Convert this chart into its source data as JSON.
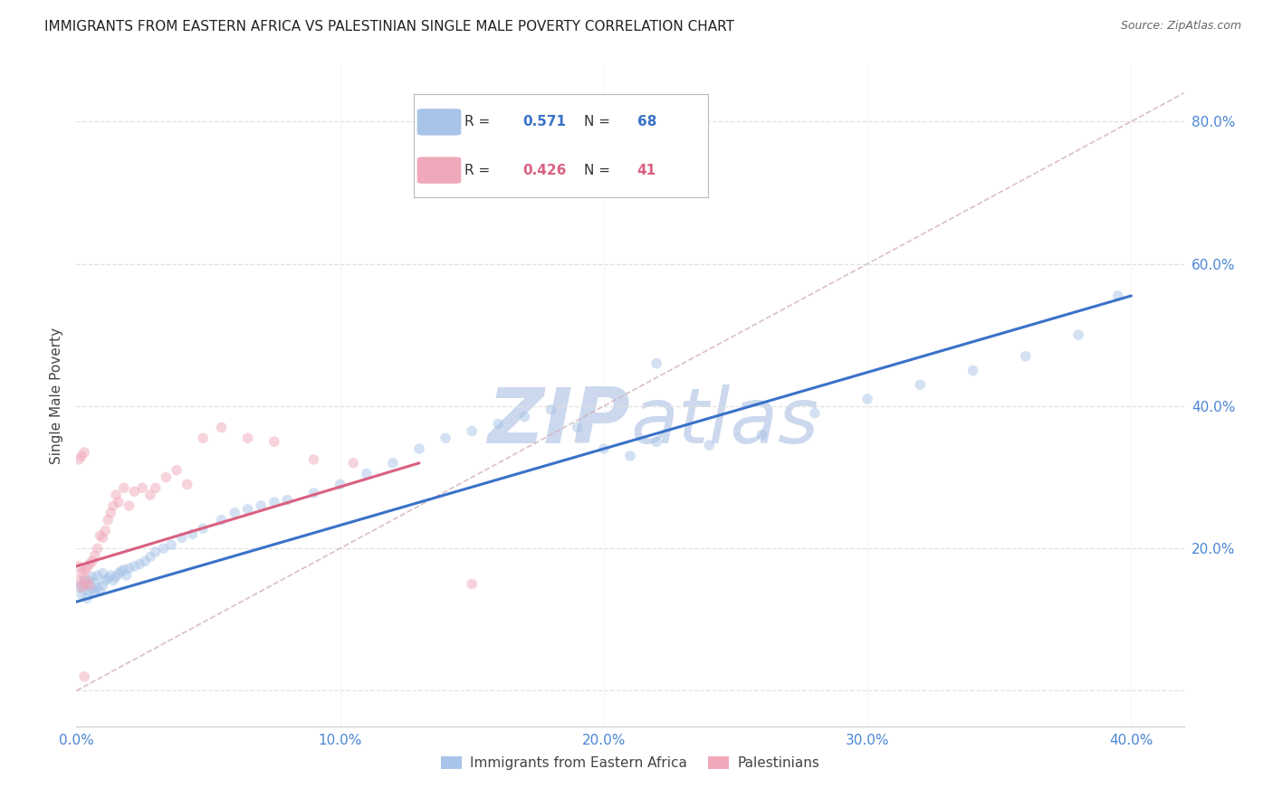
{
  "title": "IMMIGRANTS FROM EASTERN AFRICA VS PALESTINIAN SINGLE MALE POVERTY CORRELATION CHART",
  "source": "Source: ZipAtlas.com",
  "ylabel": "Single Male Poverty",
  "xlim": [
    0.0,
    0.42
  ],
  "ylim": [
    -0.05,
    0.88
  ],
  "ytick_values": [
    0.0,
    0.2,
    0.4,
    0.6,
    0.8
  ],
  "xtick_values": [
    0.0,
    0.1,
    0.2,
    0.3,
    0.4
  ],
  "R_blue": "0.571",
  "N_blue": "68",
  "R_pink": "0.426",
  "N_pink": "41",
  "color_blue": "#a8c4e8",
  "color_blue_line": "#3a72c8",
  "color_pink": "#f0a8bb",
  "color_pink_line": "#d96080",
  "color_dashed": "#d0b0b8",
  "color_axis_right": "#4a86d4",
  "color_title": "#222222",
  "color_source": "#666666",
  "background_color": "#ffffff",
  "grid_color": "#e0e0e0",
  "legend_label_blue": "Immigrants from Eastern Africa",
  "legend_label_pink": "Palestinians",
  "blue_line_x": [
    0.0,
    0.4
  ],
  "blue_line_y": [
    0.125,
    0.555
  ],
  "pink_line_x": [
    0.0,
    0.13
  ],
  "pink_line_y": [
    0.175,
    0.32
  ],
  "dashed_line_x": [
    0.0,
    0.42
  ],
  "dashed_line_y": [
    0.0,
    0.84
  ],
  "watermark_zip": "ZIP",
  "watermark_atlas": "atlas",
  "watermark_color": "#ccd8ee",
  "marker_size": 70,
  "marker_alpha": 0.5,
  "line_width": 2.2,
  "blue_scatter_x": [
    0.001,
    0.002,
    0.002,
    0.003,
    0.003,
    0.004,
    0.004,
    0.005,
    0.005,
    0.006,
    0.006,
    0.007,
    0.007,
    0.008,
    0.008,
    0.009,
    0.01,
    0.01,
    0.011,
    0.012,
    0.013,
    0.014,
    0.015,
    0.016,
    0.017,
    0.018,
    0.019,
    0.02,
    0.022,
    0.024,
    0.026,
    0.028,
    0.03,
    0.033,
    0.036,
    0.04,
    0.044,
    0.048,
    0.055,
    0.06,
    0.065,
    0.07,
    0.075,
    0.08,
    0.09,
    0.1,
    0.11,
    0.12,
    0.13,
    0.14,
    0.15,
    0.16,
    0.17,
    0.18,
    0.19,
    0.2,
    0.21,
    0.22,
    0.24,
    0.26,
    0.28,
    0.3,
    0.32,
    0.34,
    0.36,
    0.38,
    0.395,
    0.22
  ],
  "blue_scatter_y": [
    0.145,
    0.15,
    0.135,
    0.142,
    0.155,
    0.13,
    0.148,
    0.14,
    0.155,
    0.143,
    0.16,
    0.138,
    0.152,
    0.145,
    0.162,
    0.14,
    0.148,
    0.165,
    0.155,
    0.158,
    0.162,
    0.155,
    0.16,
    0.165,
    0.168,
    0.17,
    0.162,
    0.172,
    0.175,
    0.178,
    0.182,
    0.188,
    0.195,
    0.2,
    0.205,
    0.215,
    0.22,
    0.228,
    0.24,
    0.25,
    0.255,
    0.26,
    0.265,
    0.268,
    0.278,
    0.29,
    0.305,
    0.32,
    0.34,
    0.355,
    0.365,
    0.375,
    0.385,
    0.395,
    0.37,
    0.34,
    0.33,
    0.35,
    0.345,
    0.36,
    0.39,
    0.41,
    0.43,
    0.45,
    0.47,
    0.5,
    0.555,
    0.46
  ],
  "pink_scatter_x": [
    0.001,
    0.001,
    0.002,
    0.002,
    0.003,
    0.003,
    0.004,
    0.004,
    0.005,
    0.005,
    0.006,
    0.007,
    0.008,
    0.009,
    0.01,
    0.011,
    0.012,
    0.013,
    0.014,
    0.015,
    0.016,
    0.018,
    0.02,
    0.022,
    0.025,
    0.028,
    0.03,
    0.034,
    0.038,
    0.042,
    0.048,
    0.055,
    0.065,
    0.075,
    0.09,
    0.105,
    0.001,
    0.002,
    0.003,
    0.15,
    0.003
  ],
  "pink_scatter_y": [
    0.155,
    0.175,
    0.145,
    0.165,
    0.15,
    0.168,
    0.155,
    0.172,
    0.148,
    0.178,
    0.182,
    0.19,
    0.2,
    0.218,
    0.215,
    0.225,
    0.24,
    0.25,
    0.26,
    0.275,
    0.265,
    0.285,
    0.26,
    0.28,
    0.285,
    0.275,
    0.285,
    0.3,
    0.31,
    0.29,
    0.355,
    0.37,
    0.355,
    0.35,
    0.325,
    0.32,
    0.325,
    0.33,
    0.335,
    0.15,
    0.02
  ]
}
